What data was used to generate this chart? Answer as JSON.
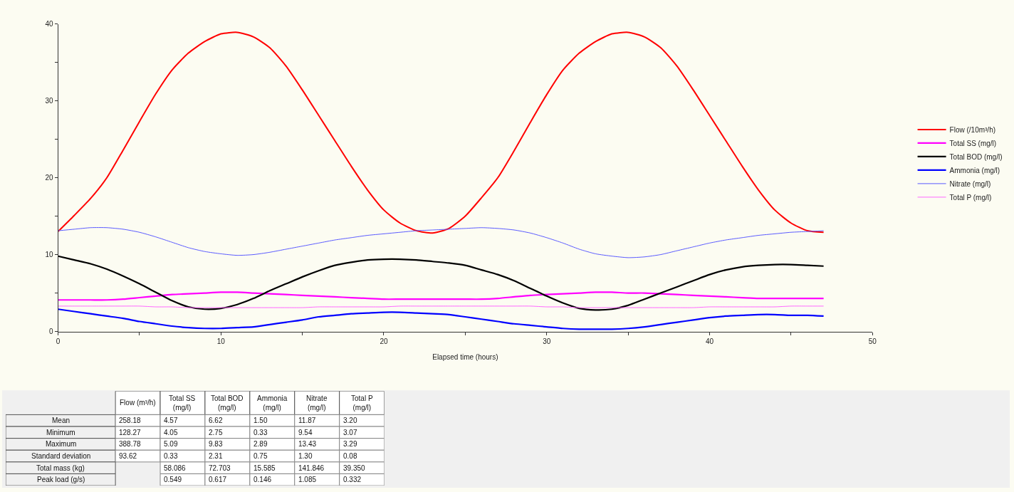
{
  "chart_data": [
    {
      "type": "line",
      "xlabel": "Elapsed time (hours)",
      "x": [
        0,
        1,
        2,
        3,
        4,
        5,
        6,
        7,
        8,
        9,
        10,
        11,
        12,
        13,
        14,
        15,
        16,
        17,
        18,
        19,
        20,
        21,
        22,
        23,
        24,
        25,
        26,
        27,
        28,
        29,
        30,
        31,
        32,
        33,
        34,
        35,
        36,
        37,
        38,
        39,
        40,
        41,
        42,
        43,
        44,
        45,
        46,
        47
      ],
      "xlim": [
        0,
        50
      ],
      "xticks": [
        0,
        {
          "value": 5,
          "label": null
        },
        10,
        {
          "value": 15,
          "label": null
        },
        20,
        {
          "value": 25,
          "label": null
        },
        30,
        {
          "value": 35,
          "label": null
        },
        40,
        {
          "value": 45,
          "label": null
        },
        50
      ],
      "ylim": [
        0,
        40
      ],
      "yticks": [
        0,
        {
          "value": 5,
          "label": null
        },
        10,
        {
          "value": 15,
          "label": null
        },
        20,
        {
          "value": 25,
          "label": null
        },
        30,
        {
          "value": 35,
          "label": null
        },
        40
      ],
      "grid": false,
      "legend": "right",
      "series": [
        {
          "name": "Flow (/10m³/h)",
          "color": "#ff0000",
          "values": [
            13.0,
            15.1,
            17.3,
            20.0,
            23.6,
            27.3,
            30.9,
            34.0,
            36.2,
            37.7,
            38.7,
            38.9,
            38.3,
            36.9,
            34.5,
            31.4,
            28.1,
            24.8,
            21.5,
            18.4,
            15.8,
            14.1,
            13.1,
            12.8,
            13.4,
            15.0,
            17.4,
            20.0,
            23.5,
            27.2,
            30.8,
            34.0,
            36.2,
            37.7,
            38.7,
            38.9,
            38.3,
            36.9,
            34.5,
            31.4,
            28.1,
            24.8,
            21.5,
            18.4,
            15.8,
            14.1,
            13.1,
            12.9
          ]
        },
        {
          "name": "Total SS (mg/l)",
          "color": "#ff00ff",
          "values": [
            4.1,
            4.1,
            4.1,
            4.1,
            4.2,
            4.4,
            4.6,
            4.8,
            4.9,
            5.0,
            5.1,
            5.1,
            5.0,
            4.9,
            4.8,
            4.7,
            4.6,
            4.5,
            4.4,
            4.3,
            4.2,
            4.2,
            4.2,
            4.2,
            4.2,
            4.2,
            4.2,
            4.3,
            4.5,
            4.7,
            4.8,
            4.9,
            5.0,
            5.1,
            5.1,
            5.0,
            5.0,
            4.9,
            4.8,
            4.7,
            4.6,
            4.5,
            4.4,
            4.3,
            4.3,
            4.3,
            4.3,
            4.3
          ]
        },
        {
          "name": "Total BOD (mg/l)",
          "color": "#000000",
          "values": [
            9.8,
            9.3,
            8.8,
            8.1,
            7.2,
            6.2,
            5.1,
            4.0,
            3.2,
            2.9,
            3.0,
            3.5,
            4.3,
            5.3,
            6.2,
            7.1,
            7.9,
            8.6,
            9.0,
            9.3,
            9.4,
            9.4,
            9.3,
            9.1,
            8.9,
            8.6,
            8.0,
            7.4,
            6.6,
            5.6,
            4.6,
            3.7,
            3.0,
            2.8,
            2.9,
            3.4,
            4.2,
            5.0,
            5.8,
            6.6,
            7.4,
            8.0,
            8.4,
            8.6,
            8.7,
            8.7,
            8.6,
            8.5
          ]
        },
        {
          "name": "Ammonia (mg/l)",
          "color": "#0000ff",
          "values": [
            2.9,
            2.6,
            2.3,
            2.0,
            1.7,
            1.3,
            1.0,
            0.7,
            0.5,
            0.4,
            0.4,
            0.5,
            0.6,
            0.9,
            1.2,
            1.5,
            1.9,
            2.1,
            2.3,
            2.4,
            2.5,
            2.5,
            2.4,
            2.3,
            2.2,
            1.9,
            1.6,
            1.3,
            1.0,
            0.8,
            0.6,
            0.4,
            0.3,
            0.3,
            0.3,
            0.4,
            0.6,
            0.9,
            1.2,
            1.5,
            1.8,
            2.0,
            2.1,
            2.2,
            2.2,
            2.1,
            2.1,
            2.0
          ]
        },
        {
          "name": "Nitrate (mg/l)",
          "color": "#5a5aff",
          "values": [
            13.1,
            13.3,
            13.5,
            13.5,
            13.3,
            12.9,
            12.3,
            11.6,
            10.9,
            10.4,
            10.1,
            9.9,
            10.0,
            10.3,
            10.7,
            11.1,
            11.5,
            11.9,
            12.2,
            12.5,
            12.7,
            12.9,
            13.1,
            13.2,
            13.3,
            13.4,
            13.5,
            13.4,
            13.2,
            12.8,
            12.2,
            11.5,
            10.7,
            10.1,
            9.8,
            9.6,
            9.7,
            10.0,
            10.5,
            11.0,
            11.5,
            11.9,
            12.2,
            12.5,
            12.7,
            12.9,
            13.0,
            13.1
          ]
        },
        {
          "name": "Total P (mg/l)",
          "color": "#ff66ff",
          "values": [
            3.3,
            3.3,
            3.3,
            3.3,
            3.3,
            3.3,
            3.2,
            3.2,
            3.1,
            3.1,
            3.1,
            3.1,
            3.1,
            3.1,
            3.1,
            3.1,
            3.2,
            3.2,
            3.2,
            3.2,
            3.2,
            3.3,
            3.3,
            3.3,
            3.3,
            3.3,
            3.3,
            3.3,
            3.3,
            3.3,
            3.2,
            3.2,
            3.1,
            3.1,
            3.1,
            3.1,
            3.1,
            3.1,
            3.1,
            3.1,
            3.2,
            3.2,
            3.2,
            3.2,
            3.2,
            3.3,
            3.3,
            3.3
          ]
        }
      ]
    },
    {
      "type": "other",
      "categories": [
        "Flow (m³/h)",
        "Total SS (mg/l)",
        "Total BOD (mg/l)",
        "Ammonia (mg/l)",
        "Nitrate (mg/l)",
        "Total P (mg/l)"
      ],
      "y_categories": [
        "Mean",
        "Minimum",
        "Maximum",
        "Standard deviation",
        "Total mass (kg)",
        "Peak load (g/s)"
      ],
      "cell_labels": [
        [
          "258.18",
          "4.57",
          "6.62",
          "1.50",
          "11.87",
          "3.20"
        ],
        [
          "128.27",
          "4.05",
          "2.75",
          "0.33",
          "9.54",
          "3.07"
        ],
        [
          "388.78",
          "5.09",
          "9.83",
          "2.89",
          "13.43",
          "3.29"
        ],
        [
          "93.62",
          "0.33",
          "2.31",
          "0.75",
          "1.30",
          "0.08"
        ],
        [
          null,
          "58.086",
          "72.703",
          "15.585",
          "141.846",
          "39.350"
        ],
        [
          null,
          "0.549",
          "0.617",
          "0.146",
          "1.085",
          "0.332"
        ]
      ]
    }
  ]
}
